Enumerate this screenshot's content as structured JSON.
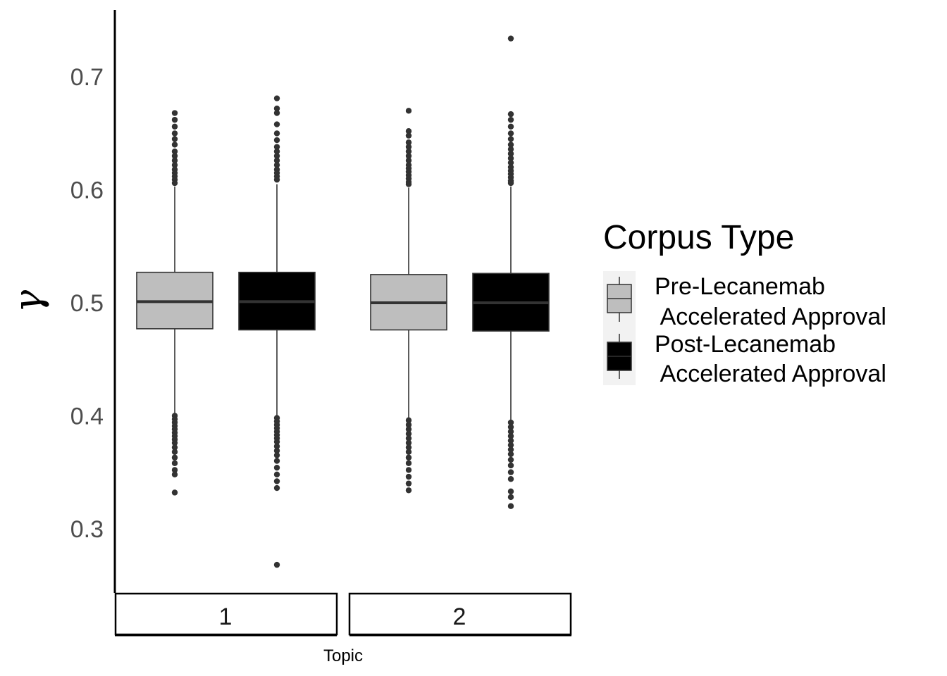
{
  "chart_data": {
    "type": "boxplot",
    "ylabel": "γ",
    "xlabel": "Topic",
    "ylim": [
      0.24,
      0.755
    ],
    "y_ticks": [
      "0.3",
      "0.4",
      "0.5",
      "0.6",
      "0.7"
    ],
    "facets": [
      "1",
      "2"
    ],
    "grid": false,
    "legend": {
      "title": "Corpus Type",
      "position": "right",
      "entries": [
        {
          "line1": "Pre-Lecanemab",
          "line2": " Accelerated Approval",
          "fill": "#bebebe"
        },
        {
          "line1": "Post-Lecanemab",
          "line2": " Accelerated Approval",
          "fill": "#000000"
        }
      ]
    },
    "series": [
      {
        "name": "Pre-Lecanemab Accelerated Approval",
        "fill": "#bebebe",
        "boxes": [
          {
            "facet": "1",
            "whisker_low": 0.402,
            "q1": 0.477,
            "median": 0.501,
            "q3": 0.527,
            "whisker_high": 0.603,
            "outliers": [
              0.668,
              0.662,
              0.656,
              0.65,
              0.645,
              0.64,
              0.634,
              0.63,
              0.626,
              0.622,
              0.618,
              0.615,
              0.612,
              0.609,
              0.606,
              0.4,
              0.397,
              0.394,
              0.391,
              0.388,
              0.385,
              0.382,
              0.379,
              0.376,
              0.372,
              0.368,
              0.363,
              0.358,
              0.352,
              0.348,
              0.332
            ]
          },
          {
            "facet": "2",
            "whisker_low": 0.398,
            "q1": 0.476,
            "median": 0.5,
            "q3": 0.525,
            "whisker_high": 0.602,
            "outliers": [
              0.67,
              0.652,
              0.648,
              0.642,
              0.638,
              0.634,
              0.63,
              0.626,
              0.622,
              0.619,
              0.616,
              0.613,
              0.61,
              0.607,
              0.605,
              0.396,
              0.392,
              0.388,
              0.384,
              0.38,
              0.376,
              0.372,
              0.368,
              0.363,
              0.358,
              0.352,
              0.346,
              0.34,
              0.334
            ]
          }
        ]
      },
      {
        "name": "Post-Lecanemab Accelerated Approval",
        "fill": "#000000",
        "boxes": [
          {
            "facet": "1",
            "whisker_low": 0.4,
            "q1": 0.476,
            "median": 0.501,
            "q3": 0.527,
            "whisker_high": 0.605,
            "outliers": [
              0.681,
              0.672,
              0.668,
              0.658,
              0.65,
              0.644,
              0.638,
              0.634,
              0.63,
              0.626,
              0.622,
              0.618,
              0.615,
              0.612,
              0.609,
              0.398,
              0.395,
              0.392,
              0.389,
              0.386,
              0.383,
              0.38,
              0.377,
              0.373,
              0.369,
              0.365,
              0.36,
              0.354,
              0.348,
              0.342,
              0.336,
              0.268
            ]
          },
          {
            "facet": "2",
            "whisker_low": 0.396,
            "q1": 0.475,
            "median": 0.5,
            "q3": 0.526,
            "whisker_high": 0.603,
            "outliers": [
              0.734,
              0.667,
              0.662,
              0.656,
              0.65,
              0.645,
              0.64,
              0.636,
              0.632,
              0.628,
              0.624,
              0.62,
              0.617,
              0.614,
              0.611,
              0.608,
              0.606,
              0.394,
              0.39,
              0.386,
              0.382,
              0.378,
              0.374,
              0.37,
              0.366,
              0.361,
              0.356,
              0.35,
              0.344,
              0.333,
              0.328,
              0.32
            ]
          }
        ]
      }
    ]
  }
}
